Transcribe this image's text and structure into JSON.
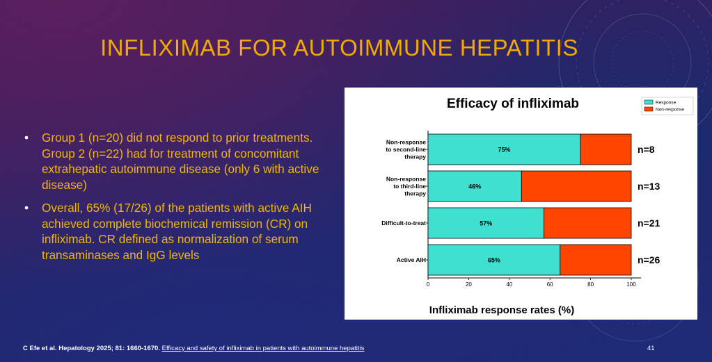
{
  "slide": {
    "title": "INFLIXIMAB FOR AUTOIMMUNE HEPATITIS",
    "bullets": [
      "Group 1 (n=20) did not respond to prior treatments. Group 2 (n=22) had for treatment of concomitant extrahepatic autoimmune disease (only 6 with active disease)",
      "Overall, 65% (17/26) of the patients with active AIH achieved complete biochemical remission (CR) on infliximab. CR defined as normalization of serum transaminases and IgG levels"
    ],
    "bullet_glyph": "•",
    "footer": {
      "citation": "C Efe et al. Hepatology 2025; 81: 1660-1670.",
      "link_text": "Efficacy and safety of infliximab in patients with autoimmune hepatitis"
    },
    "page_number": "41",
    "colors": {
      "title": "#f2a900",
      "bullet_text": "#f2b600",
      "response": "#40e0d0",
      "non_response": "#ff4500"
    }
  },
  "chart_data": {
    "type": "bar",
    "orientation": "horizontal",
    "stacked": true,
    "title": "Efficacy  of infliximab",
    "xlabel": "Infliximab response rates (%)",
    "ylabel": "",
    "xlim": [
      0,
      100
    ],
    "x_ticks": [
      "0",
      "20",
      "40",
      "60",
      "80",
      "100"
    ],
    "categories": [
      [
        "Non-response",
        "to second-line",
        "therapy"
      ],
      [
        "Non-response",
        "to third-line",
        "therapy"
      ],
      [
        "Difficult-to-treat"
      ],
      [
        "Active AIH"
      ]
    ],
    "series": [
      {
        "name": "Response",
        "color": "#40e0d0",
        "values": [
          75,
          46,
          57,
          65
        ]
      },
      {
        "name": "Non-response",
        "color": "#ff4500",
        "values": [
          25,
          54,
          43,
          35
        ]
      }
    ],
    "data_labels": [
      "75%",
      "46%",
      "57%",
      "65%"
    ],
    "n_labels": [
      "n=8",
      "n=13",
      "n=21",
      "n=26"
    ],
    "legend_position": "top-right",
    "grid": false
  }
}
